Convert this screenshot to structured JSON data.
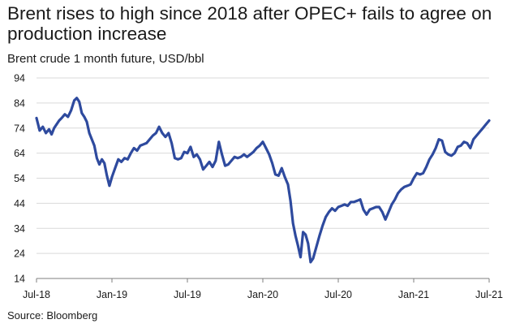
{
  "chart_data": {
    "type": "line",
    "title": "Brent rises to high since 2018 after OPEC+ fails to agree on production increase",
    "subtitle": "Brent crude 1 month future, USD/bbl",
    "source": "Source: Bloomberg",
    "line_color": "#2e4a9e",
    "ylim": [
      14,
      94
    ],
    "yticks": [
      14,
      24,
      34,
      44,
      54,
      64,
      74,
      84,
      94
    ],
    "xticks": [
      "Jul-18",
      "Jan-19",
      "Jul-19",
      "Jan-20",
      "Jul-20",
      "Jan-21",
      "Jul-21"
    ],
    "grid": "horizontal",
    "series": [
      {
        "values": [
          [
            "Jul-18",
            78.0
          ],
          [
            "Jul-18",
            73.0
          ],
          [
            "Jul-18",
            74.5
          ],
          [
            "Jul-18",
            72.0
          ],
          [
            "Aug-18",
            73.5
          ],
          [
            "Aug-18",
            71.5
          ],
          [
            "Aug-18",
            74.0
          ],
          [
            "Aug-18",
            75.5
          ],
          [
            "Aug-18",
            77.0
          ],
          [
            "Sep-18",
            78.0
          ],
          [
            "Sep-18",
            79.5
          ],
          [
            "Sep-18",
            78.5
          ],
          [
            "Sep-18",
            81.0
          ],
          [
            "Oct-18",
            85.0
          ],
          [
            "Oct-18",
            86.0
          ],
          [
            "Oct-18",
            84.5
          ],
          [
            "Oct-18",
            80.0
          ],
          [
            "Oct-18",
            78.5
          ],
          [
            "Nov-18",
            76.5
          ],
          [
            "Nov-18",
            72.0
          ],
          [
            "Nov-18",
            69.5
          ],
          [
            "Nov-18",
            67.0
          ],
          [
            "Nov-18",
            62.0
          ],
          [
            "Dec-18",
            59.5
          ],
          [
            "Dec-18",
            61.5
          ],
          [
            "Dec-18",
            60.0
          ],
          [
            "Dec-18",
            55.0
          ],
          [
            "Dec-18",
            51.0
          ],
          [
            "Jan-19",
            54.5
          ],
          [
            "Jan-19",
            58.0
          ],
          [
            "Jan-19",
            61.5
          ],
          [
            "Jan-19",
            60.5
          ],
          [
            "Feb-19",
            62.0
          ],
          [
            "Feb-19",
            61.5
          ],
          [
            "Feb-19",
            64.0
          ],
          [
            "Feb-19",
            66.0
          ],
          [
            "Mar-19",
            65.0
          ],
          [
            "Mar-19",
            67.0
          ],
          [
            "Mar-19",
            67.5
          ],
          [
            "Mar-19",
            68.0
          ],
          [
            "Apr-19",
            69.5
          ],
          [
            "Apr-19",
            71.0
          ],
          [
            "Apr-19",
            72.0
          ],
          [
            "Apr-19",
            74.5
          ],
          [
            "May-19",
            72.0
          ],
          [
            "May-19",
            70.5
          ],
          [
            "May-19",
            72.0
          ],
          [
            "May-19",
            68.0
          ],
          [
            "Jun-19",
            62.0
          ],
          [
            "Jun-19",
            61.5
          ],
          [
            "Jun-19",
            62.0
          ],
          [
            "Jun-19",
            64.5
          ],
          [
            "Jul-19",
            64.0
          ],
          [
            "Jul-19",
            66.5
          ],
          [
            "Jul-19",
            62.5
          ],
          [
            "Jul-19",
            63.5
          ],
          [
            "Aug-19",
            61.5
          ],
          [
            "Aug-19",
            57.5
          ],
          [
            "Aug-19",
            59.0
          ],
          [
            "Aug-19",
            60.5
          ],
          [
            "Sep-19",
            58.5
          ],
          [
            "Sep-19",
            61.0
          ],
          [
            "Sep-19",
            68.5
          ],
          [
            "Sep-19",
            63.5
          ],
          [
            "Oct-19",
            59.0
          ],
          [
            "Oct-19",
            59.5
          ],
          [
            "Oct-19",
            61.0
          ],
          [
            "Oct-19",
            62.5
          ],
          [
            "Nov-19",
            62.0
          ],
          [
            "Nov-19",
            62.5
          ],
          [
            "Nov-19",
            63.5
          ],
          [
            "Nov-19",
            62.5
          ],
          [
            "Dec-19",
            63.5
          ],
          [
            "Dec-19",
            64.5
          ],
          [
            "Dec-19",
            66.0
          ],
          [
            "Dec-19",
            67.0
          ],
          [
            "Jan-20",
            68.5
          ],
          [
            "Jan-20",
            66.0
          ],
          [
            "Jan-20",
            63.5
          ],
          [
            "Jan-20",
            60.0
          ],
          [
            "Feb-20",
            55.5
          ],
          [
            "Feb-20",
            55.0
          ],
          [
            "Feb-20",
            58.0
          ],
          [
            "Feb-20",
            54.5
          ],
          [
            "Mar-20",
            51.5
          ],
          [
            "Mar-20",
            45.0
          ],
          [
            "Mar-20",
            36.0
          ],
          [
            "Mar-20",
            31.0
          ],
          [
            "Mar-20",
            27.0
          ],
          [
            "Apr-20",
            22.5
          ],
          [
            "Apr-20",
            32.5
          ],
          [
            "Apr-20",
            31.5
          ],
          [
            "Apr-20",
            28.0
          ],
          [
            "Apr-20",
            20.5
          ],
          [
            "May-20",
            22.0
          ],
          [
            "May-20",
            26.5
          ],
          [
            "May-20",
            31.0
          ],
          [
            "May-20",
            35.0
          ],
          [
            "Jun-20",
            38.5
          ],
          [
            "Jun-20",
            40.5
          ],
          [
            "Jun-20",
            42.0
          ],
          [
            "Jun-20",
            41.0
          ],
          [
            "Jul-20",
            42.5
          ],
          [
            "Jul-20",
            43.0
          ],
          [
            "Jul-20",
            43.5
          ],
          [
            "Jul-20",
            43.0
          ],
          [
            "Aug-20",
            44.5
          ],
          [
            "Aug-20",
            44.5
          ],
          [
            "Aug-20",
            45.0
          ],
          [
            "Aug-20",
            45.5
          ],
          [
            "Sep-20",
            41.5
          ],
          [
            "Sep-20",
            39.5
          ],
          [
            "Sep-20",
            41.5
          ],
          [
            "Sep-20",
            42.0
          ],
          [
            "Oct-20",
            42.5
          ],
          [
            "Oct-20",
            42.5
          ],
          [
            "Oct-20",
            40.5
          ],
          [
            "Oct-20",
            37.5
          ],
          [
            "Nov-20",
            40.5
          ],
          [
            "Nov-20",
            43.5
          ],
          [
            "Nov-20",
            45.5
          ],
          [
            "Nov-20",
            48.0
          ],
          [
            "Dec-20",
            49.5
          ],
          [
            "Dec-20",
            50.5
          ],
          [
            "Dec-20",
            51.0
          ],
          [
            "Dec-20",
            51.5
          ],
          [
            "Jan-21",
            54.0
          ],
          [
            "Jan-21",
            56.0
          ],
          [
            "Jan-21",
            55.5
          ],
          [
            "Jan-21",
            56.0
          ],
          [
            "Feb-21",
            58.5
          ],
          [
            "Feb-21",
            61.5
          ],
          [
            "Feb-21",
            63.5
          ],
          [
            "Feb-21",
            66.0
          ],
          [
            "Mar-21",
            69.5
          ],
          [
            "Mar-21",
            69.0
          ],
          [
            "Mar-21",
            64.5
          ],
          [
            "Mar-21",
            63.5
          ],
          [
            "Apr-21",
            63.0
          ],
          [
            "Apr-21",
            64.0
          ],
          [
            "Apr-21",
            66.5
          ],
          [
            "Apr-21",
            67.0
          ],
          [
            "May-21",
            68.5
          ],
          [
            "May-21",
            68.0
          ],
          [
            "May-21",
            66.0
          ],
          [
            "May-21",
            69.5
          ],
          [
            "Jun-21",
            71.0
          ],
          [
            "Jun-21",
            72.5
          ],
          [
            "Jun-21",
            74.0
          ],
          [
            "Jun-21",
            75.5
          ],
          [
            "Jul-21",
            77.0
          ]
        ]
      }
    ]
  }
}
